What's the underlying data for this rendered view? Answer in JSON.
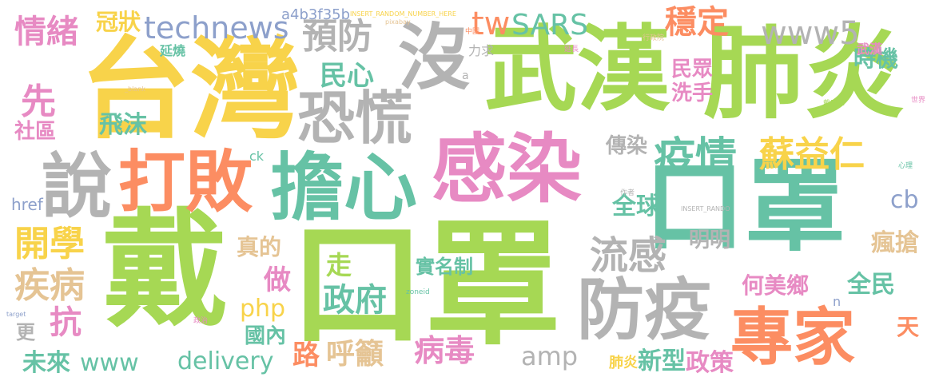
{
  "palette": {
    "yellow": "#f8d34a",
    "green": "#a6d854",
    "teal": "#66c2a5",
    "pink": "#e78ac3",
    "orange": "#fc8d62",
    "blue": "#8da0cb",
    "gray": "#b3b3b3",
    "tan": "#e5c494"
  },
  "words": [
    {
      "text": "戴",
      "color": "green"
    },
    {
      "text": "口罩",
      "color": "green"
    },
    {
      "text": "口罩",
      "color": "teal"
    },
    {
      "text": "台灣",
      "color": "yellow"
    },
    {
      "text": "武漢",
      "color": "green"
    },
    {
      "text": "肺炎",
      "color": "green"
    },
    {
      "text": "擔心",
      "color": "teal"
    },
    {
      "text": "感染",
      "color": "pink"
    },
    {
      "text": "打敗",
      "color": "orange"
    },
    {
      "text": "說",
      "color": "gray"
    },
    {
      "text": "沒",
      "color": "gray"
    },
    {
      "text": "恐慌",
      "color": "gray"
    },
    {
      "text": "防疫",
      "color": "gray"
    },
    {
      "text": "專家",
      "color": "orange"
    },
    {
      "text": "technews",
      "color": "blue"
    },
    {
      "text": "預防",
      "color": "gray"
    },
    {
      "text": "SARS",
      "color": "teal"
    },
    {
      "text": "tw",
      "color": "orange"
    },
    {
      "text": "穩定",
      "color": "orange"
    },
    {
      "text": "www5",
      "color": "gray"
    },
    {
      "text": "情緒",
      "color": "pink"
    },
    {
      "text": "冠狀",
      "color": "yellow"
    },
    {
      "text": "a4b3f35b",
      "color": "blue"
    },
    {
      "text": "疫情",
      "color": "teal"
    },
    {
      "text": "蘇益仁",
      "color": "yellow"
    },
    {
      "text": "民心",
      "color": "teal"
    },
    {
      "text": "民眾",
      "color": "pink"
    },
    {
      "text": "洗手",
      "color": "pink"
    },
    {
      "text": "時機",
      "color": "teal"
    },
    {
      "text": "先",
      "color": "pink"
    },
    {
      "text": "社區",
      "color": "pink"
    },
    {
      "text": "飛沫",
      "color": "teal"
    },
    {
      "text": "開學",
      "color": "yellow"
    },
    {
      "text": "疾病",
      "color": "tan"
    },
    {
      "text": "抗",
      "color": "pink"
    },
    {
      "text": "更",
      "color": "gray"
    },
    {
      "text": "未來",
      "color": "teal"
    },
    {
      "text": "www",
      "color": "teal"
    },
    {
      "text": "流感",
      "color": "gray"
    },
    {
      "text": "明明",
      "color": "gray"
    },
    {
      "text": "傳染",
      "color": "gray"
    },
    {
      "text": "全球",
      "color": "teal"
    },
    {
      "text": "cb",
      "color": "blue"
    },
    {
      "text": "瘋搶",
      "color": "tan"
    },
    {
      "text": "全民",
      "color": "teal"
    },
    {
      "text": "何美鄉",
      "color": "pink"
    },
    {
      "text": "天",
      "color": "orange"
    },
    {
      "text": "走",
      "color": "green"
    },
    {
      "text": "政府",
      "color": "teal"
    },
    {
      "text": "做",
      "color": "pink"
    },
    {
      "text": "真的",
      "color": "tan"
    },
    {
      "text": "php",
      "color": "yellow"
    },
    {
      "text": "國內",
      "color": "teal"
    },
    {
      "text": "delivery",
      "color": "teal"
    },
    {
      "text": "路",
      "color": "orange"
    },
    {
      "text": "呼籲",
      "color": "tan"
    },
    {
      "text": "病毒",
      "color": "pink"
    },
    {
      "text": "amp",
      "color": "gray"
    },
    {
      "text": "實名制",
      "color": "teal"
    },
    {
      "text": "肺炎",
      "color": "yellow"
    },
    {
      "text": "新型",
      "color": "teal"
    },
    {
      "text": "政策",
      "color": "pink"
    },
    {
      "text": "href",
      "color": "blue"
    },
    {
      "text": "ck",
      "color": "teal"
    },
    {
      "text": "延燒",
      "color": "teal"
    },
    {
      "text": "力求",
      "color": "gray"
    },
    {
      "text": "INSERT_RANDOM_NUMBER_HERE",
      "color": "yellow"
    },
    {
      "text": "pixabay",
      "color": "tan"
    },
    {
      "text": "INSERT_RANDO",
      "color": "gray"
    },
    {
      "text": "zoneid",
      "color": "teal"
    },
    {
      "text": "a",
      "color": "gray"
    },
    {
      "text": "n",
      "color": "blue"
    },
    {
      "text": "武漢",
      "color": "pink"
    },
    {
      "text": "行政院",
      "color": "tan"
    },
    {
      "text": "_blank",
      "color": "tan"
    },
    {
      "text": "target",
      "color": "blue"
    },
    {
      "text": "世界",
      "color": "pink"
    },
    {
      "text": "延長",
      "color": "pink"
    },
    {
      "text": "中國",
      "color": "orange"
    },
    {
      "text": "政治",
      "color": "pink"
    },
    {
      "text": "戴口罩",
      "color": "green"
    },
    {
      "text": "心理",
      "color": "teal"
    },
    {
      "text": "作者",
      "color": "gray"
    }
  ]
}
